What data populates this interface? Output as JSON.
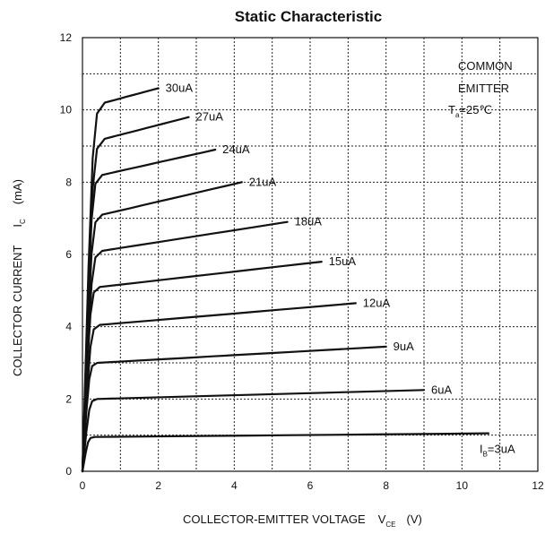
{
  "chart_data": {
    "type": "line",
    "title": "Static Characteristic",
    "xlabel_main": "COLLECTOR-EMITTER VOLTAGE",
    "xlabel_symbol": "V",
    "xlabel_sub": "CE",
    "xlabel_unit": "(V)",
    "ylabel_main": "COLLECTOR CURRENT",
    "ylabel_symbol": "I",
    "ylabel_sub": "C",
    "ylabel_unit": "(mA)",
    "xlim": [
      0,
      12
    ],
    "ylim": [
      0,
      12
    ],
    "x_ticks": [
      "0",
      "2",
      "4",
      "6",
      "8",
      "10",
      "12"
    ],
    "y_ticks": [
      "0",
      "2",
      "4",
      "6",
      "8",
      "10",
      "12"
    ],
    "grid": true,
    "annotation": {
      "line1": "COMMON",
      "line2": "EMITTER",
      "temp_symbol": "T",
      "temp_sub": "a",
      "temp_value": "=25℃"
    },
    "series": [
      {
        "name": "30uA",
        "label": "30uA",
        "knee_v": 0.45,
        "knee_i": 10.2,
        "end_v": 2.0,
        "end_i": 10.6
      },
      {
        "name": "27uA",
        "label": "27uA",
        "knee_v": 0.45,
        "knee_i": 9.2,
        "end_v": 2.8,
        "end_i": 9.8
      },
      {
        "name": "24uA",
        "label": "24uA",
        "knee_v": 0.4,
        "knee_i": 8.2,
        "end_v": 3.5,
        "end_i": 8.9
      },
      {
        "name": "21uA",
        "label": "21uA",
        "knee_v": 0.4,
        "knee_i": 7.1,
        "end_v": 4.2,
        "end_i": 8.0
      },
      {
        "name": "18uA",
        "label": "18uA",
        "knee_v": 0.4,
        "knee_i": 6.1,
        "end_v": 5.4,
        "end_i": 6.9
      },
      {
        "name": "15uA",
        "label": "15uA",
        "knee_v": 0.35,
        "knee_i": 5.1,
        "end_v": 6.3,
        "end_i": 5.8
      },
      {
        "name": "12uA",
        "label": "12uA",
        "knee_v": 0.35,
        "knee_i": 4.05,
        "end_v": 7.2,
        "end_i": 4.65
      },
      {
        "name": "9uA",
        "label": "9uA",
        "knee_v": 0.3,
        "knee_i": 3.0,
        "end_v": 8.0,
        "end_i": 3.45
      },
      {
        "name": "6uA",
        "label": "6uA",
        "knee_v": 0.3,
        "knee_i": 2.0,
        "end_v": 9.0,
        "end_i": 2.25
      },
      {
        "name": "3uA",
        "label_symbol": "I",
        "label_sub": "B",
        "label_value": "=3uA",
        "knee_v": 0.25,
        "knee_i": 0.95,
        "end_v": 10.7,
        "end_i": 1.05
      }
    ]
  }
}
